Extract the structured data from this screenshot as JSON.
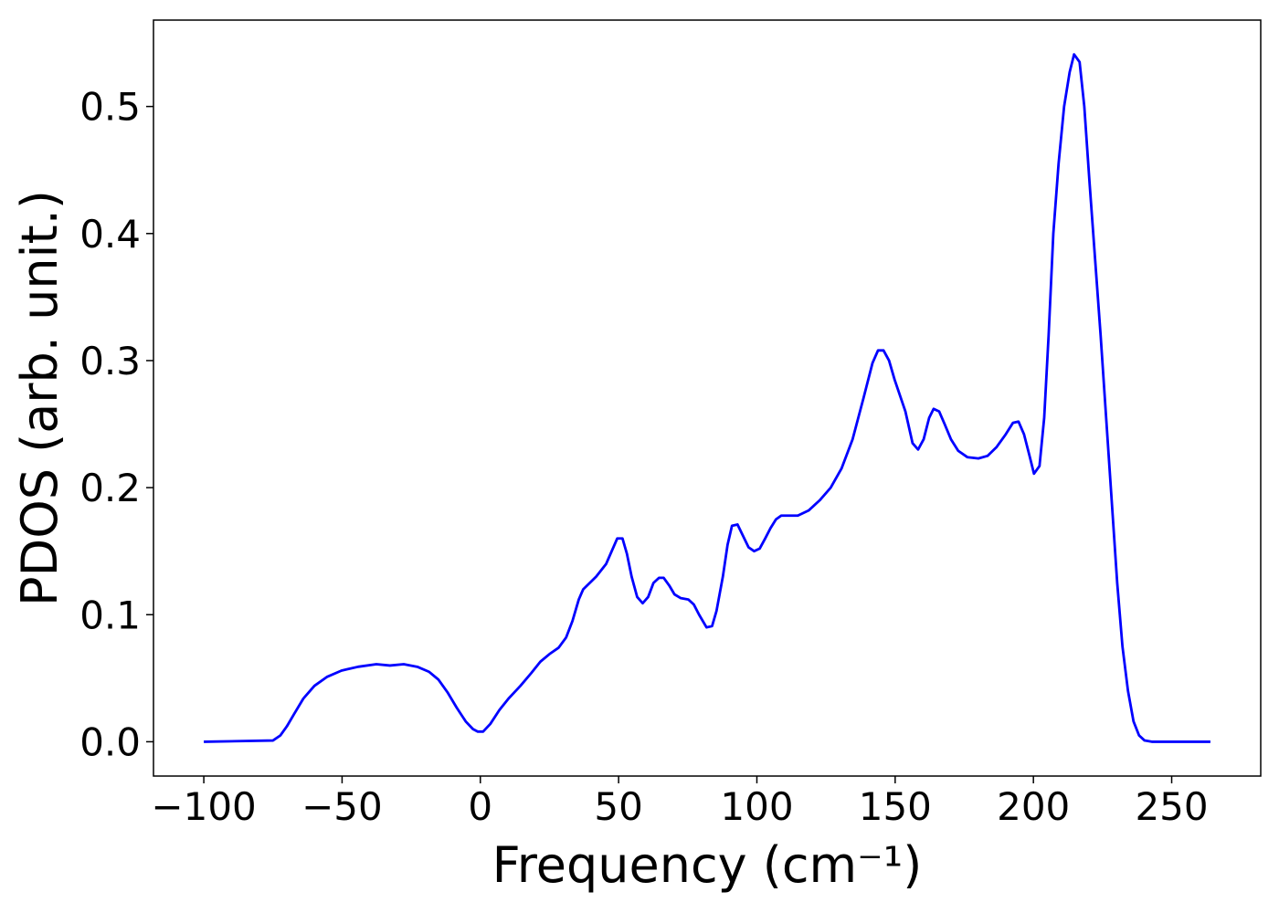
{
  "chart_data": {
    "type": "line",
    "xlabel": "Frequency (cm⁻¹)",
    "ylabel": "PDOS (arb. unit.)",
    "x": [
      -100,
      -75,
      -72.3,
      -70,
      -67.3,
      -64,
      -60,
      -55.5,
      -50.2,
      -44.2,
      -37.6,
      -32.7,
      -27.7,
      -22.8,
      -18.5,
      -15.2,
      -11.9,
      -8.6,
      -5.3,
      -2.7,
      -1,
      1,
      3.6,
      6.9,
      10.2,
      14.5,
      18.4,
      21.7,
      25,
      28.3,
      31,
      33.3,
      35.6,
      37.2,
      41.9,
      45.5,
      49.5,
      51.4,
      53,
      54.7,
      56.7,
      58.7,
      60.7,
      62.6,
      64.6,
      66.3,
      68.3,
      70.2,
      72.5,
      75.2,
      77.2,
      79.1,
      81.8,
      83.8,
      85.4,
      87.7,
      89.4,
      91,
      93,
      95,
      97,
      99,
      101,
      103,
      104.9,
      106.9,
      108.8,
      112.8,
      114.8,
      118.7,
      122.7,
      126.7,
      130.6,
      134.6,
      138.5,
      141.8,
      143.8,
      145.8,
      147.8,
      149.8,
      153.7,
      156.3,
      158.3,
      160.3,
      162.3,
      163.9,
      165.9,
      167.9,
      170.2,
      172.8,
      176.1,
      180.1,
      183.4,
      186.7,
      190,
      192.6,
      194.6,
      196.6,
      198.6,
      200.2,
      202.2,
      203.9,
      205.5,
      207.2,
      209.1,
      211.1,
      213.1,
      214.7,
      216.7,
      218.4,
      220.3,
      222.3,
      224.3,
      226.3,
      228.3,
      230.3,
      232.2,
      234.2,
      236.2,
      238.2,
      240.2,
      242.8,
      264
    ],
    "series": [
      {
        "color": "#0000ff",
        "values": [
          0,
          0.001,
          0.005,
          0.012,
          0.022,
          0.034,
          0.044,
          0.051,
          0.056,
          0.059,
          0.061,
          0.06,
          0.061,
          0.059,
          0.055,
          0.049,
          0.039,
          0.027,
          0.016,
          0.01,
          0.008,
          0.008,
          0.014,
          0.025,
          0.034,
          0.044,
          0.054,
          0.063,
          0.069,
          0.074,
          0.082,
          0.095,
          0.112,
          0.12,
          0.13,
          0.14,
          0.16,
          0.16,
          0.148,
          0.13,
          0.114,
          0.109,
          0.114,
          0.125,
          0.129,
          0.129,
          0.123,
          0.116,
          0.113,
          0.112,
          0.108,
          0.1,
          0.09,
          0.091,
          0.103,
          0.13,
          0.155,
          0.17,
          0.171,
          0.162,
          0.153,
          0.15,
          0.152,
          0.16,
          0.168,
          0.175,
          0.178,
          0.178,
          0.178,
          0.182,
          0.19,
          0.2,
          0.215,
          0.238,
          0.27,
          0.298,
          0.308,
          0.308,
          0.3,
          0.285,
          0.26,
          0.235,
          0.23,
          0.238,
          0.255,
          0.262,
          0.26,
          0.25,
          0.238,
          0.229,
          0.224,
          0.223,
          0.225,
          0.232,
          0.242,
          0.251,
          0.252,
          0.242,
          0.225,
          0.211,
          0.217,
          0.255,
          0.32,
          0.4,
          0.455,
          0.5,
          0.527,
          0.541,
          0.535,
          0.5,
          0.44,
          0.38,
          0.32,
          0.255,
          0.19,
          0.125,
          0.075,
          0.04,
          0.016,
          0.005,
          0.001,
          0,
          0
        ]
      }
    ],
    "xlim": [
      -118.2,
      282.2
    ],
    "ylim": [
      -0.027,
      0.568
    ],
    "xticks": [
      {
        "value": -100,
        "label": "−100"
      },
      {
        "value": -50,
        "label": "−50"
      },
      0,
      50,
      100,
      150,
      200,
      250
    ],
    "yticks": [
      {
        "value": 0,
        "label": "0.0"
      },
      0.1,
      0.2,
      0.3,
      0.4,
      0.5
    ],
    "grid": false
  }
}
